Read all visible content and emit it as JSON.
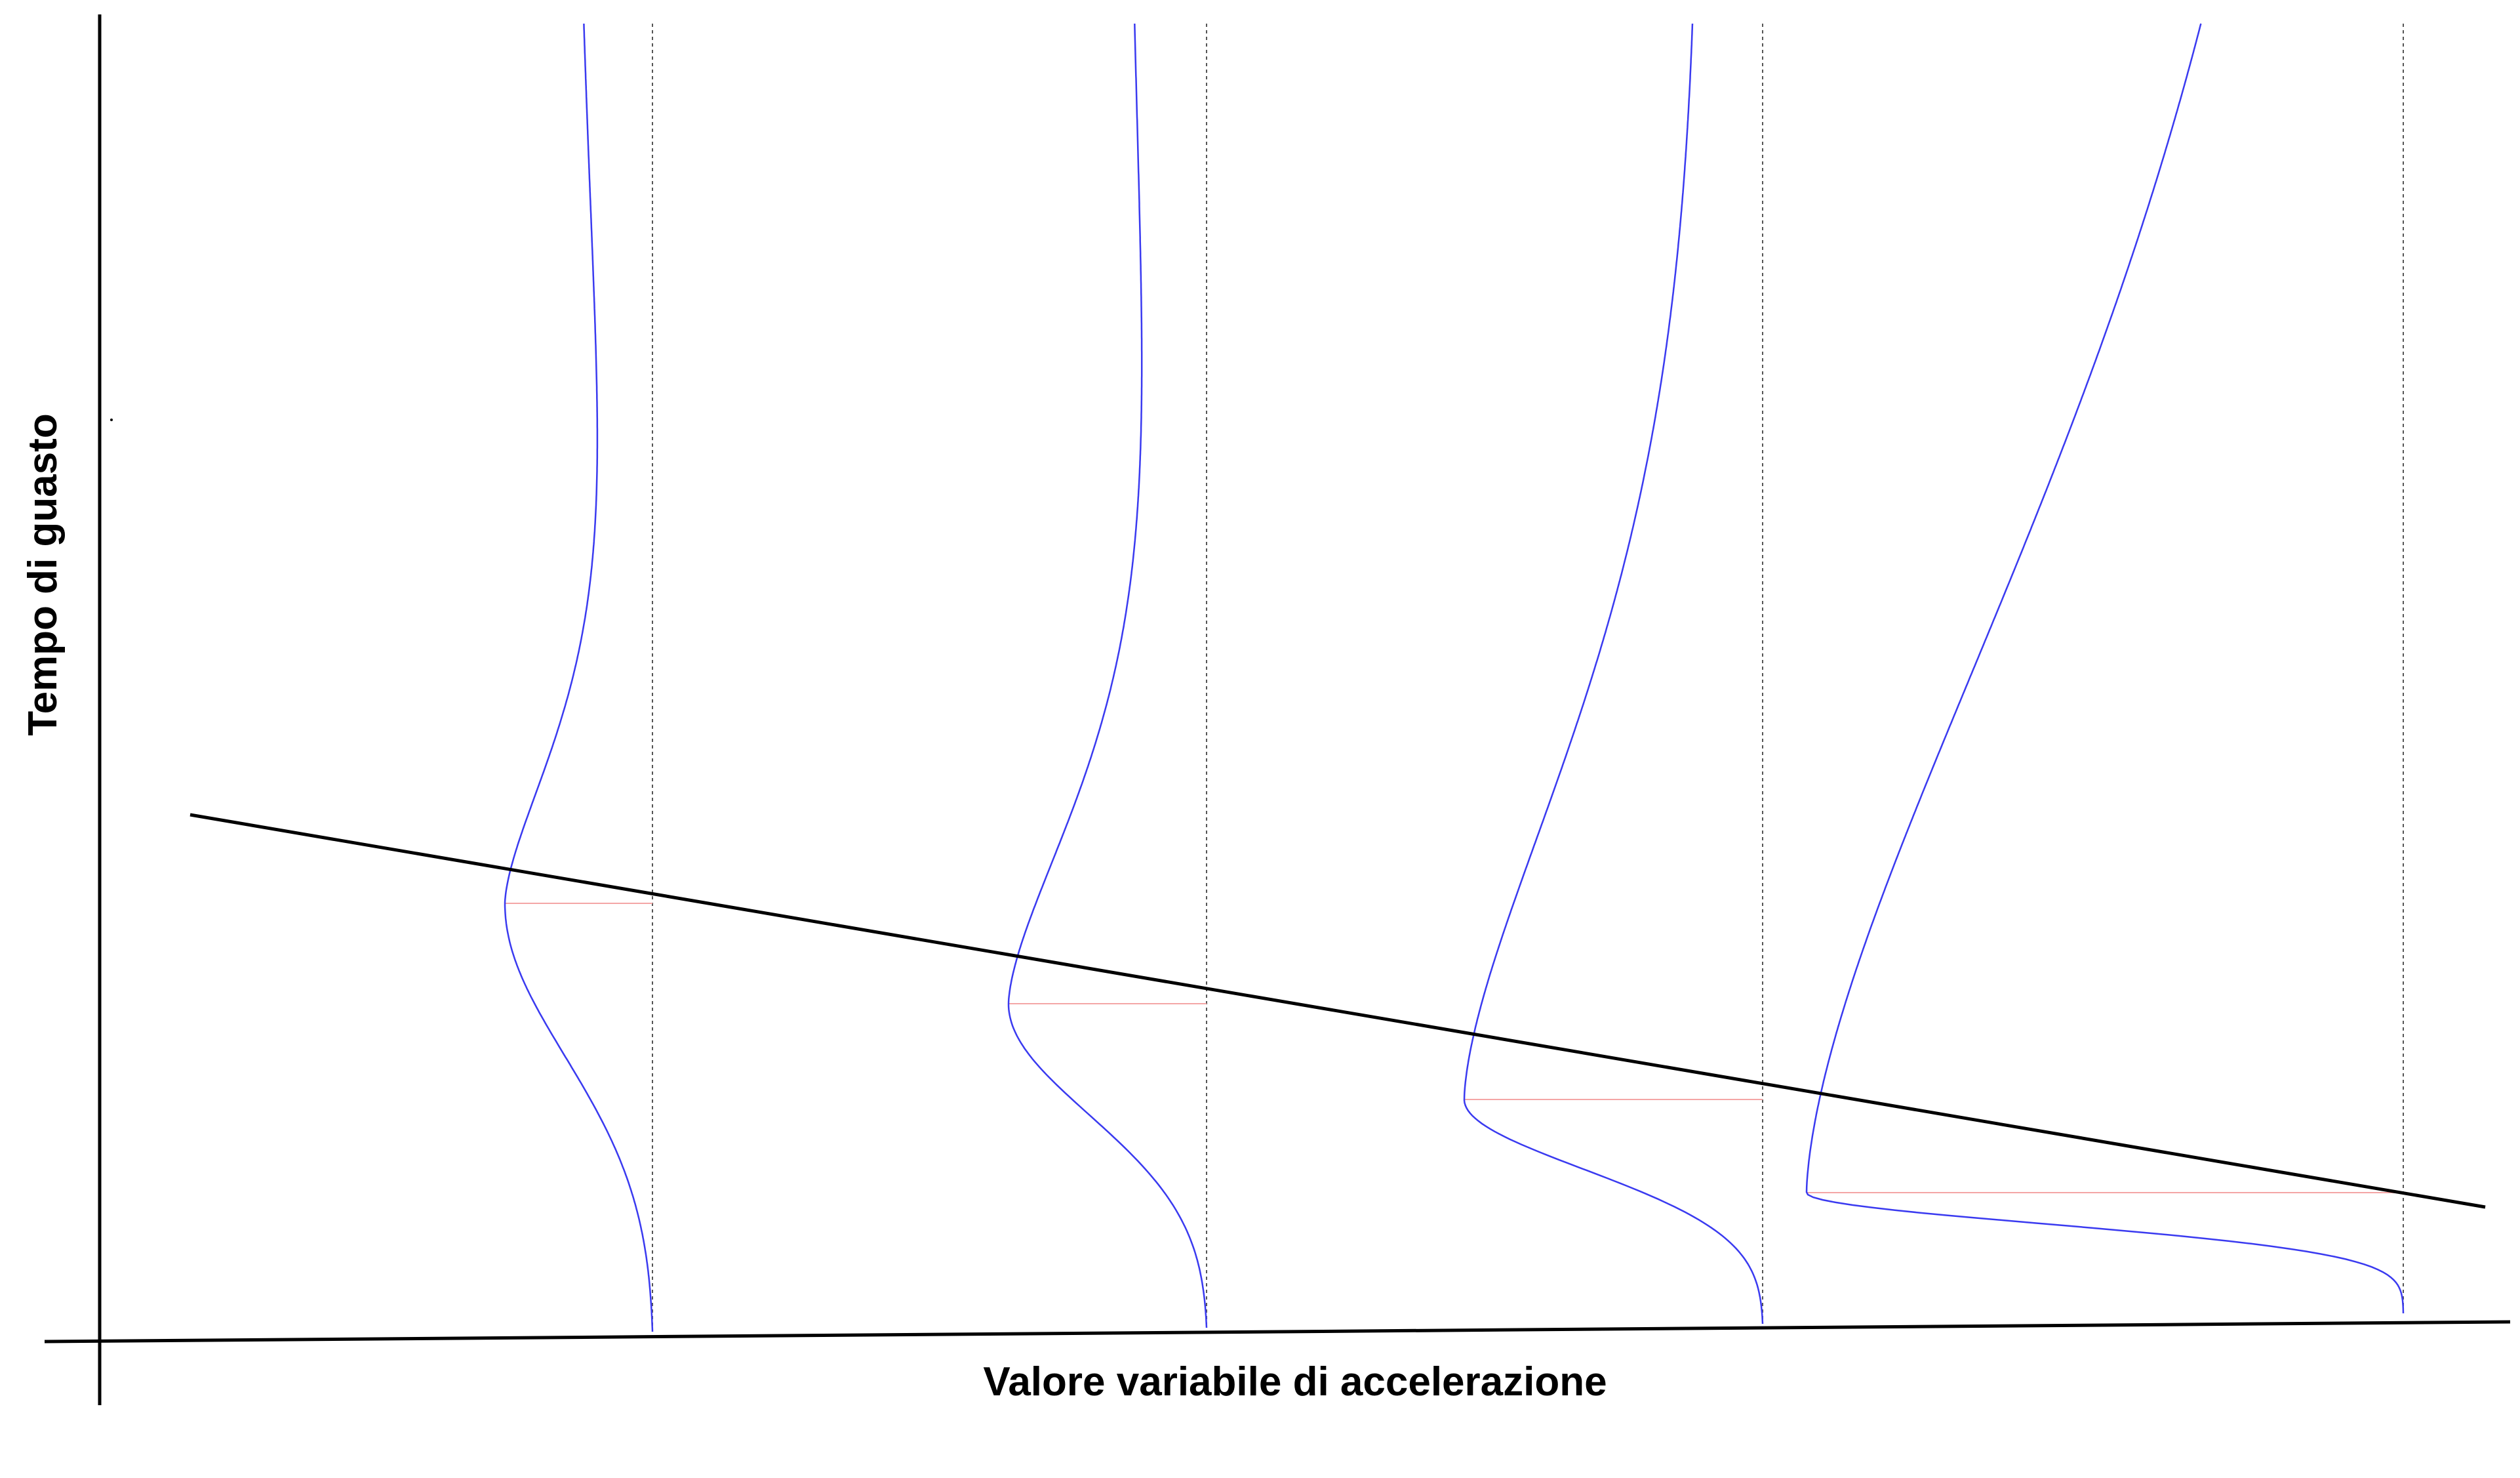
{
  "diagram": {
    "type": "accelerated-life-test",
    "x_axis_label": "Valore variabile di accelerazione",
    "y_axis_label": "Tempo di guasto",
    "stress_levels": 4,
    "colors": {
      "axes": "#000000",
      "trend_line": "#000000",
      "distribution_curves": "#3a3af0",
      "level_guides": "#555555",
      "mode_markers": "#f4a6a6"
    },
    "trend": "decreasing"
  }
}
